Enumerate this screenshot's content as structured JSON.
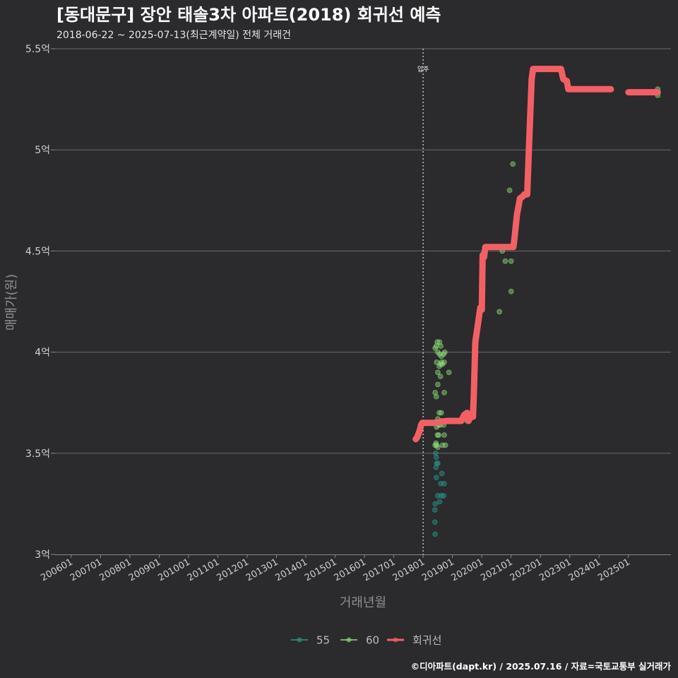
{
  "chart_data": {
    "type": "scatter",
    "title": "[동대문구] 장안 태솔3차 아파트(2018) 회귀선 예측",
    "subtitle": "2018-06-22 ~ 2025-07-13(최근계약일) 전체 거래건",
    "xlabel": "거래년월",
    "ylabel": "매매가(원)",
    "caption": "©디아파트(dapt.kr) / 2025.07.16 / 자료=국토교통부 실거래가",
    "annotation": {
      "label": "입주",
      "x": 2018.0
    },
    "ylim": [
      3.0,
      5.5
    ],
    "xlim": [
      2005.45,
      2026.45
    ],
    "yticks": [
      {
        "value": 3.0,
        "label": "3억"
      },
      {
        "value": 3.5,
        "label": "3.5억"
      },
      {
        "value": 4.0,
        "label": "4억"
      },
      {
        "value": 4.5,
        "label": "4.5억"
      },
      {
        "value": 5.0,
        "label": "5억"
      },
      {
        "value": 5.5,
        "label": "5.5억"
      }
    ],
    "xticks": [
      {
        "value": 2006.0,
        "label": "200601"
      },
      {
        "value": 2007.0,
        "label": "200701"
      },
      {
        "value": 2008.0,
        "label": "200801"
      },
      {
        "value": 2009.0,
        "label": "200901"
      },
      {
        "value": 2010.0,
        "label": "201001"
      },
      {
        "value": 2011.0,
        "label": "201101"
      },
      {
        "value": 2012.0,
        "label": "201201"
      },
      {
        "value": 2013.0,
        "label": "201301"
      },
      {
        "value": 2014.0,
        "label": "201401"
      },
      {
        "value": 2015.0,
        "label": "201501"
      },
      {
        "value": 2016.0,
        "label": "201601"
      },
      {
        "value": 2017.0,
        "label": "201701"
      },
      {
        "value": 2018.0,
        "label": "201801"
      },
      {
        "value": 2019.0,
        "label": "201901"
      },
      {
        "value": 2020.0,
        "label": "202001"
      },
      {
        "value": 2021.0,
        "label": "202101"
      },
      {
        "value": 2022.0,
        "label": "202201"
      },
      {
        "value": 2023.0,
        "label": "202301"
      },
      {
        "value": 2024.0,
        "label": "202401"
      },
      {
        "value": 2025.0,
        "label": "202501"
      }
    ],
    "legend": [
      {
        "label": "55",
        "color": "#2a9a8c",
        "kind": "point"
      },
      {
        "label": "60",
        "color": "#8ee07a",
        "kind": "point"
      },
      {
        "label": "회귀선",
        "color": "#f26065",
        "kind": "line"
      }
    ],
    "series": [
      {
        "name": "55",
        "color": "#2a9a8c",
        "points": [
          [
            2018.41,
            3.1
          ],
          [
            2018.4,
            3.16
          ],
          [
            2018.4,
            3.22
          ],
          [
            2018.41,
            3.25
          ],
          [
            2018.5,
            3.29
          ],
          [
            2018.56,
            3.26
          ],
          [
            2018.62,
            3.29
          ],
          [
            2018.7,
            3.29
          ],
          [
            2018.72,
            3.35
          ],
          [
            2018.6,
            3.35
          ],
          [
            2018.64,
            3.4
          ],
          [
            2018.45,
            3.38
          ],
          [
            2018.44,
            3.43
          ],
          [
            2018.46,
            3.45
          ],
          [
            2018.5,
            3.45
          ],
          [
            2018.43,
            3.5
          ],
          [
            2018.45,
            3.48
          ]
        ]
      },
      {
        "name": "60",
        "color": "#8ee07a",
        "points": [
          [
            2018.41,
            3.54
          ],
          [
            2018.46,
            3.54
          ],
          [
            2018.5,
            3.53
          ],
          [
            2018.44,
            3.55
          ],
          [
            2018.49,
            3.59
          ],
          [
            2018.53,
            3.59
          ],
          [
            2018.46,
            3.63
          ],
          [
            2018.52,
            3.64
          ],
          [
            2018.58,
            3.64
          ],
          [
            2018.7,
            3.64
          ],
          [
            2018.62,
            3.66
          ],
          [
            2018.66,
            3.66
          ],
          [
            2018.74,
            3.66
          ],
          [
            2018.5,
            3.67
          ],
          [
            2018.55,
            3.7
          ],
          [
            2018.62,
            3.7
          ],
          [
            2018.72,
            3.59
          ],
          [
            2018.66,
            3.54
          ],
          [
            2018.76,
            3.54
          ],
          [
            2018.41,
            3.8
          ],
          [
            2018.45,
            3.78
          ],
          [
            2018.72,
            3.8
          ],
          [
            2018.5,
            3.84
          ],
          [
            2018.5,
            3.9
          ],
          [
            2018.59,
            3.88
          ],
          [
            2018.55,
            3.93
          ],
          [
            2018.46,
            3.95
          ],
          [
            2018.6,
            3.94
          ],
          [
            2018.62,
            3.95
          ],
          [
            2018.66,
            3.94
          ],
          [
            2018.72,
            3.95
          ],
          [
            2018.88,
            3.9
          ],
          [
            2018.56,
            3.99
          ],
          [
            2018.62,
            3.98
          ],
          [
            2018.7,
            3.99
          ],
          [
            2018.74,
            4.0
          ],
          [
            2018.41,
            4.02
          ],
          [
            2018.45,
            4.03
          ],
          [
            2018.48,
            4.05
          ],
          [
            2018.56,
            4.05
          ],
          [
            2018.6,
            4.03
          ],
          [
            2018.5,
            4.0
          ],
          [
            2019.5,
            3.66
          ],
          [
            2019.7,
            3.69
          ],
          [
            2020.6,
            4.2
          ],
          [
            2020.7,
            4.5
          ],
          [
            2020.8,
            4.45
          ],
          [
            2020.95,
            4.8
          ],
          [
            2021.0,
            4.3
          ],
          [
            2021.0,
            4.45
          ],
          [
            2021.06,
            4.93
          ],
          [
            2026.0,
            5.27
          ],
          [
            2026.0,
            5.3
          ]
        ]
      }
    ],
    "regression": {
      "name": "회귀선",
      "color": "#f26065",
      "segments": [
        [
          [
            2017.75,
            3.57
          ],
          [
            2017.8,
            3.58
          ],
          [
            2017.85,
            3.6
          ],
          [
            2017.9,
            3.62
          ],
          [
            2017.93,
            3.64
          ],
          [
            2017.97,
            3.65
          ],
          [
            2018.4,
            3.65
          ],
          [
            2018.8,
            3.66
          ],
          [
            2019.15,
            3.66
          ],
          [
            2019.3,
            3.66
          ],
          [
            2019.4,
            3.69
          ],
          [
            2019.5,
            3.7
          ],
          [
            2019.55,
            3.66
          ],
          [
            2019.65,
            3.69
          ],
          [
            2019.7,
            3.68
          ],
          [
            2019.73,
            3.8
          ],
          [
            2019.78,
            4.05
          ],
          [
            2019.83,
            4.1
          ],
          [
            2019.9,
            4.17
          ],
          [
            2019.95,
            4.22
          ],
          [
            2020.0,
            4.21
          ],
          [
            2020.03,
            4.48
          ],
          [
            2020.08,
            4.47
          ],
          [
            2020.12,
            4.52
          ],
          [
            2020.9,
            4.52
          ],
          [
            2021.08,
            4.52
          ],
          [
            2021.12,
            4.57
          ],
          [
            2021.2,
            4.68
          ],
          [
            2021.3,
            4.76
          ],
          [
            2021.4,
            4.77
          ],
          [
            2021.45,
            4.78
          ],
          [
            2021.55,
            4.78
          ],
          [
            2021.62,
            5.05
          ],
          [
            2021.7,
            5.35
          ],
          [
            2021.75,
            5.4
          ],
          [
            2022.7,
            5.4
          ],
          [
            2022.78,
            5.35
          ],
          [
            2022.9,
            5.34
          ],
          [
            2022.95,
            5.3
          ],
          [
            2024.4,
            5.3
          ]
        ],
        [
          [
            2025.0,
            5.285
          ],
          [
            2026.0,
            5.285
          ]
        ]
      ]
    }
  }
}
